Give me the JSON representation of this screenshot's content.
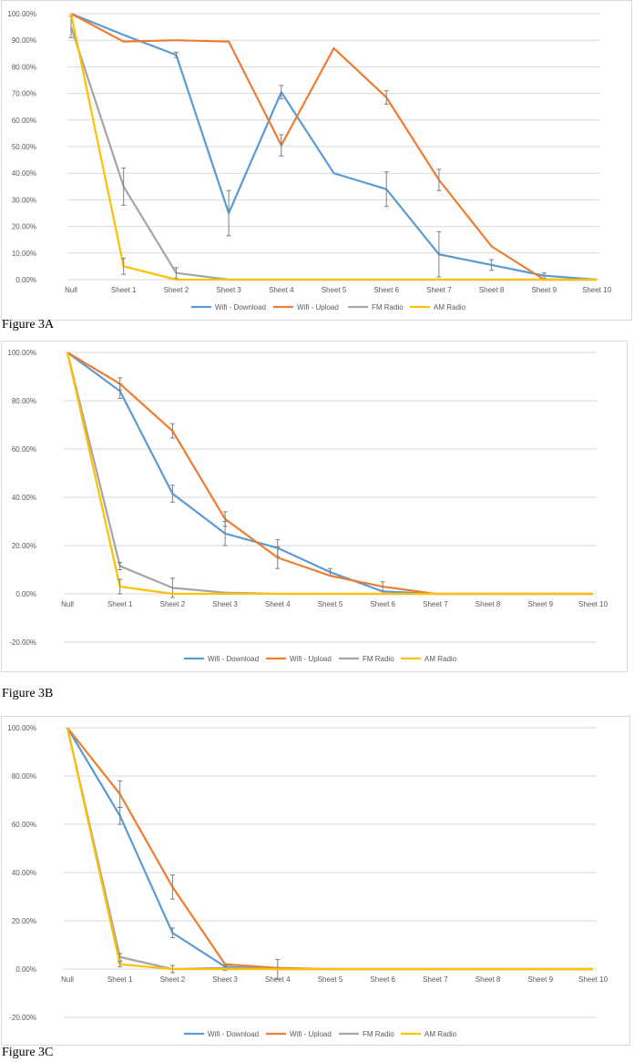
{
  "colors": {
    "wifi_download": "#5b9bd5",
    "wifi_upload": "#ed7d31",
    "fm_radio": "#a5a5a5",
    "am_radio": "#ffc000",
    "grid": "#d9d9d9",
    "error_bar": "#7f7f7f"
  },
  "chart_data": [
    {
      "type": "line",
      "caption": "Figure 3A",
      "categories": [
        "Null",
        "Sheet 1",
        "Sheet 2",
        "Sheet 3",
        "Sheet 4",
        "Sheet 5",
        "Sheet 6",
        "Sheet 7",
        "Sheet 8",
        "Sheet 9",
        "Sheet 10"
      ],
      "yticks": [
        "0.00%",
        "10.00%",
        "20.00%",
        "30.00%",
        "40.00%",
        "50.00%",
        "60.00%",
        "70.00%",
        "80.00%",
        "90.00%",
        "100.00%"
      ],
      "ylim": [
        0,
        100
      ],
      "series": [
        {
          "name": "Wifi - Download",
          "color": "#5b9bd5",
          "values": [
            100,
            92,
            84.5,
            25,
            70.5,
            40,
            34,
            9.5,
            5.5,
            1.5,
            0
          ],
          "errors": [
            0,
            0,
            1,
            8.5,
            2.5,
            0,
            6.5,
            8.5,
            2,
            1,
            0
          ]
        },
        {
          "name": "Wifi - Upload",
          "color": "#ed7d31",
          "values": [
            100,
            89.5,
            90,
            89.5,
            50.5,
            87,
            68.5,
            37.5,
            12.5,
            0,
            0
          ],
          "errors": [
            0,
            0,
            0,
            0,
            4,
            0,
            2.5,
            4,
            0,
            0,
            0
          ]
        },
        {
          "name": "FM Radio",
          "color": "#a5a5a5",
          "values": [
            95,
            35,
            2.5,
            0,
            0,
            0,
            0,
            0,
            0,
            0,
            0
          ],
          "errors": [
            4,
            7,
            2,
            0,
            0,
            0,
            0,
            0,
            0,
            0,
            0
          ]
        },
        {
          "name": "AM Radio",
          "color": "#ffc000",
          "values": [
            100,
            5,
            0,
            0,
            0,
            0,
            0,
            0,
            0,
            0,
            0
          ],
          "errors": [
            0,
            3,
            0,
            0,
            0,
            0,
            0,
            0,
            0,
            0,
            0
          ]
        }
      ],
      "legend": "bottom"
    },
    {
      "type": "line",
      "caption": "Figure 3B",
      "categories": [
        "Null",
        "Sheet 1",
        "Sheet 2",
        "Sheet 3",
        "Sheet 4",
        "Sheet 5",
        "Sheet 6",
        "Sheet 7",
        "Sheet 8",
        "Sheet 9",
        "Sheet 10"
      ],
      "yticks": [
        "-20.00%",
        "0.00%",
        "20.00%",
        "40.00%",
        "60.00%",
        "80.00%",
        "100.00%"
      ],
      "ylim": [
        -20,
        100
      ],
      "series": [
        {
          "name": "Wifi - Download",
          "color": "#5b9bd5",
          "values": [
            100,
            84,
            41.5,
            25,
            19,
            9,
            1,
            0,
            0,
            0,
            0
          ],
          "errors": [
            0,
            3,
            3.5,
            5,
            3.5,
            1.5,
            0,
            0,
            0,
            0,
            0
          ]
        },
        {
          "name": "Wifi - Upload",
          "color": "#ed7d31",
          "values": [
            100,
            87,
            67.5,
            31,
            15,
            7.5,
            3,
            0,
            0,
            0,
            0
          ],
          "errors": [
            0,
            2.5,
            3,
            3,
            4.5,
            0,
            2,
            0,
            0,
            0,
            0
          ]
        },
        {
          "name": "FM Radio",
          "color": "#a5a5a5",
          "values": [
            100,
            11.5,
            2.5,
            0.5,
            0,
            0,
            0,
            0,
            0,
            0,
            0
          ],
          "errors": [
            0,
            1.5,
            4,
            0,
            0,
            0,
            0,
            0,
            0,
            0,
            0
          ]
        },
        {
          "name": "AM Radio",
          "color": "#ffc000",
          "values": [
            100,
            3,
            0,
            0,
            0,
            0,
            0,
            0,
            0,
            0,
            0
          ],
          "errors": [
            0,
            3,
            0,
            0,
            0,
            0,
            0,
            0,
            0,
            0,
            0
          ]
        }
      ],
      "legend": "bottom"
    },
    {
      "type": "line",
      "caption": "Figure 3C",
      "categories": [
        "Null",
        "Sheet 1",
        "Sheet 2",
        "Sheet 3",
        "Sheet 4",
        "Sheet 5",
        "Sheet 6",
        "Sheet 7",
        "Sheet 8",
        "Sheet 9",
        "Sheet 10"
      ],
      "yticks": [
        "-20.00%",
        "0.00%",
        "20.00%",
        "40.00%",
        "60.00%",
        "80.00%",
        "100.00%"
      ],
      "ylim": [
        -20,
        100
      ],
      "series": [
        {
          "name": "Wifi - Download",
          "color": "#5b9bd5",
          "values": [
            100,
            63.5,
            15,
            1,
            0,
            0,
            0,
            0,
            0,
            0,
            0
          ],
          "errors": [
            0,
            3.5,
            2,
            0,
            0,
            0,
            0,
            0,
            0,
            0,
            0
          ]
        },
        {
          "name": "Wifi - Upload",
          "color": "#ed7d31",
          "values": [
            100,
            72.5,
            34,
            2,
            0.5,
            0,
            0,
            0,
            0,
            0,
            0
          ],
          "errors": [
            0,
            5.5,
            5,
            0,
            0,
            0,
            0,
            0,
            0,
            0,
            0
          ]
        },
        {
          "name": "FM Radio",
          "color": "#a5a5a5",
          "values": [
            100,
            5,
            0,
            0.5,
            0,
            0,
            0,
            0,
            0,
            0,
            0
          ],
          "errors": [
            0,
            1.5,
            1.5,
            1,
            4,
            0,
            0,
            0,
            0,
            0,
            0
          ]
        },
        {
          "name": "AM Radio",
          "color": "#ffc000",
          "values": [
            100,
            2,
            0,
            0,
            0,
            0,
            0,
            0,
            0,
            0,
            0
          ],
          "errors": [
            0,
            1,
            0,
            0,
            0,
            0,
            0,
            0,
            0,
            0,
            0
          ]
        }
      ],
      "legend": "bottom"
    }
  ]
}
